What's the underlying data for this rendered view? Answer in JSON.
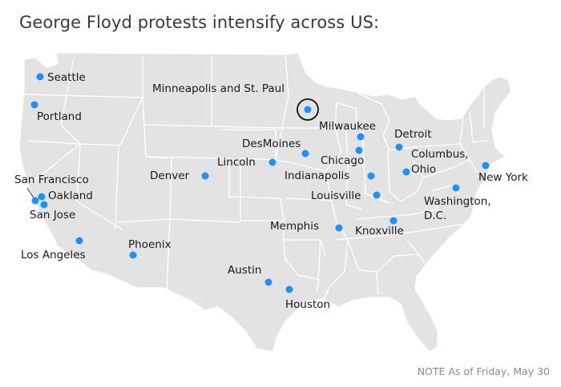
{
  "title": "George Floyd protests intensify across US:",
  "note": "NOTE As of Friday, May 30",
  "colors": {
    "land": "#e3e3e3",
    "border": "#ffffff",
    "marker": "#1e90ff",
    "highlight_ring": "#111111",
    "text": "#1a1a1a"
  },
  "highlighted_city": "Minneapolis and St. Paul",
  "cities": [
    {
      "name": "Seattle",
      "label": [
        "Seattle"
      ]
    },
    {
      "name": "Portland",
      "label": [
        "Portland"
      ]
    },
    {
      "name": "San Francisco",
      "label": [
        "San Francisco"
      ]
    },
    {
      "name": "Oakland",
      "label": [
        "Oakland"
      ]
    },
    {
      "name": "San Jose",
      "label": [
        "San Jose"
      ]
    },
    {
      "name": "Los Angeles",
      "label": [
        "Los Angeles"
      ]
    },
    {
      "name": "Phoenix",
      "label": [
        "Phoenix"
      ]
    },
    {
      "name": "Denver",
      "label": [
        "Denver"
      ]
    },
    {
      "name": "Lincoln",
      "label": [
        "Lincoln"
      ]
    },
    {
      "name": "DesMoines",
      "label": [
        "DesMoines"
      ]
    },
    {
      "name": "Minneapolis and St. Paul",
      "label": [
        "Minneapolis and St. Paul"
      ]
    },
    {
      "name": "Milwaukee",
      "label": [
        "Milwaukee"
      ]
    },
    {
      "name": "Chicago",
      "label": [
        "Chicago"
      ]
    },
    {
      "name": "Indianapolis",
      "label": [
        "Indianapolis"
      ]
    },
    {
      "name": "Louisville",
      "label": [
        "Louisville"
      ]
    },
    {
      "name": "Detroit",
      "label": [
        "Detroit"
      ]
    },
    {
      "name": "Columbus, Ohio",
      "label": [
        "Columbus,",
        "Ohio"
      ]
    },
    {
      "name": "New York",
      "label": [
        "New York"
      ]
    },
    {
      "name": "Washington, D.C.",
      "label": [
        "Washington,",
        "D.C."
      ]
    },
    {
      "name": "Knoxville",
      "label": [
        "Knoxville"
      ]
    },
    {
      "name": "Memphis",
      "label": [
        "Memphis"
      ]
    },
    {
      "name": "Austin",
      "label": [
        "Austin"
      ]
    },
    {
      "name": "Houston",
      "label": [
        "Houston"
      ]
    }
  ]
}
